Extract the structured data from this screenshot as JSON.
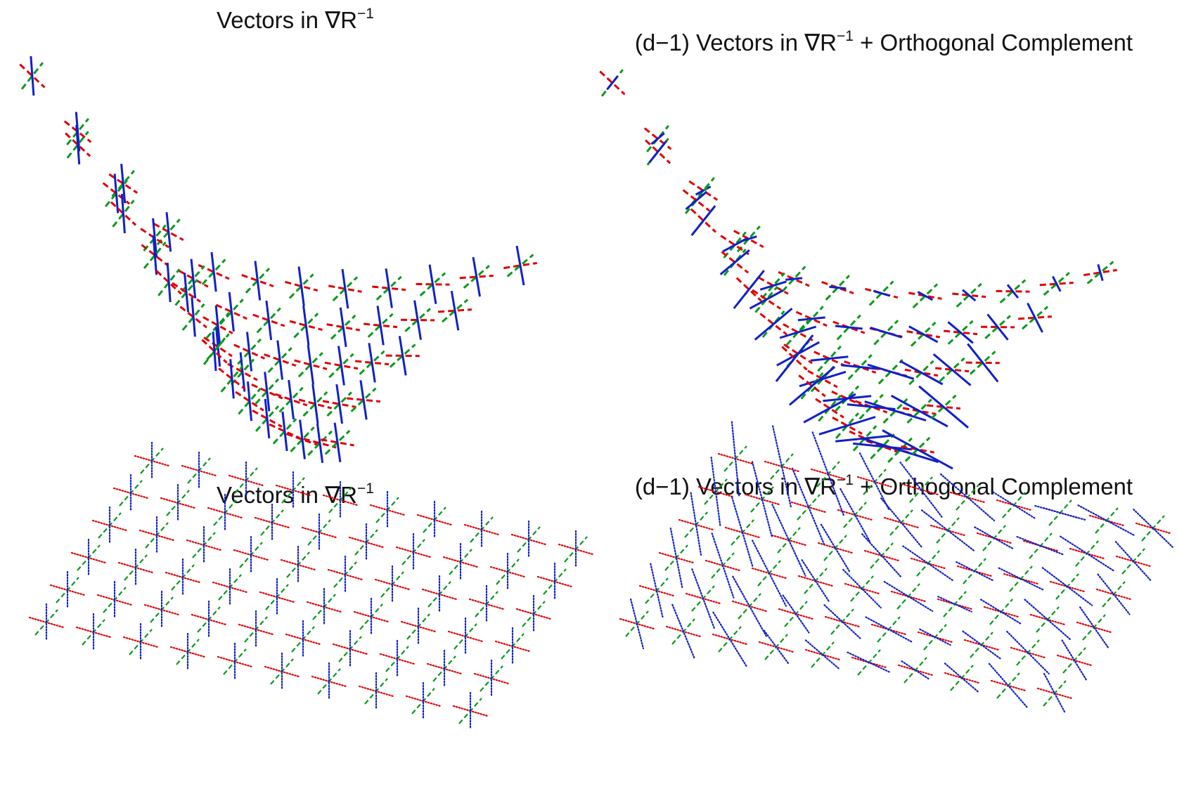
{
  "panels": [
    {
      "title_main": "Vectors in ∇R",
      "title_sup": "−1"
    },
    {
      "title_main": "(d−1) Vectors in ∇R",
      "title_sup": "−1",
      "title_tail": " + Orthogonal Complement"
    },
    {
      "title_main": "Vectors in ∇R",
      "title_sup": "−1"
    },
    {
      "title_main": "(d−1) Vectors in ∇R",
      "title_sup": "−1",
      "title_tail": " + Orthogonal Complement"
    }
  ],
  "colors": {
    "first_tangent": "#e00000",
    "second_tangent": "#0a9a1a",
    "third_vector": "#1020c8"
  },
  "chart_data": [
    {
      "type": "vector-field",
      "surface": "curved",
      "grid_rows": 5,
      "grid_cols": 12,
      "vectors": [
        "red tangent (dashed)",
        "green tangent (dashed)",
        "blue vector"
      ],
      "axes": "none"
    },
    {
      "type": "vector-field",
      "surface": "curved",
      "grid_rows": 5,
      "grid_cols": 12,
      "vectors": [
        "red tangent (dashed)",
        "green tangent (dashed)",
        "blue orthogonal complement"
      ],
      "axes": "none"
    },
    {
      "type": "vector-field",
      "surface": "planar",
      "grid_rows": 6,
      "grid_cols": 10,
      "vectors": [
        "red tangent (dotted)",
        "green tangent (dashed)",
        "blue vector (dotted)"
      ],
      "axes": "none"
    },
    {
      "type": "vector-field",
      "surface": "planar",
      "grid_rows": 6,
      "grid_cols": 10,
      "vectors": [
        "red tangent (dotted)",
        "green tangent (dashed)",
        "blue orthogonal complement (dotted)"
      ],
      "axes": "none"
    }
  ]
}
